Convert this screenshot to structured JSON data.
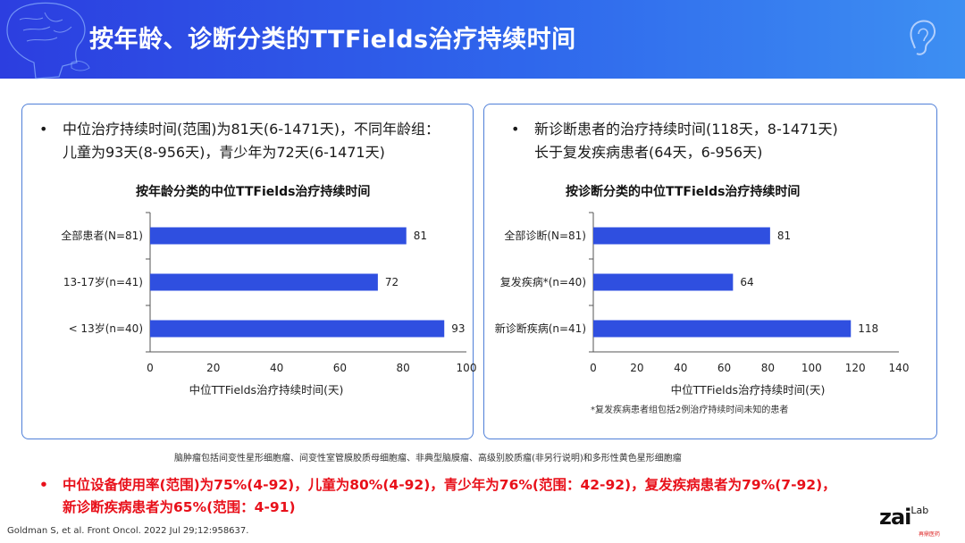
{
  "header": {
    "title": "按年龄、诊断分类的TTFields治疗持续时间",
    "bg_colors": [
      "#2c3ee0",
      "#3d8ff2"
    ]
  },
  "left_panel": {
    "bullet_line1": "中位治疗持续时间(范围)为81天(6-1471天)，不同年龄组：",
    "bullet_line2": "儿童为93天(8-956天)，青少年为72天(6-1471天)",
    "chart_title": "按年龄分类的中位TTFields治疗持续时间"
  },
  "right_panel": {
    "bullet_line1": "新诊断患者的治疗持续时间(118天，8-1471天)",
    "bullet_line2": "长于复发疾病患者(64天，6-956天)",
    "chart_title": "按诊断分类的中位TTFields治疗持续时间",
    "footnote": "*复发疾病患者组包括2例治疗持续时间未知的患者"
  },
  "chart_data": [
    {
      "type": "bar",
      "orientation": "horizontal",
      "title": "按年龄分类的中位TTFields治疗持续时间",
      "categories": [
        "全部患者(N=81)",
        "13-17岁(n=41)",
        "< 13岁(n=40)"
      ],
      "values": [
        81,
        72,
        93
      ],
      "xlabel": "中位TTFields治疗持续时间(天)",
      "xlim": [
        0,
        100
      ],
      "xticks": [
        0,
        20,
        40,
        60,
        80,
        100
      ],
      "bar_color": "#2f4fe0",
      "grid": false
    },
    {
      "type": "bar",
      "orientation": "horizontal",
      "title": "按诊断分类的中位TTFields治疗持续时间",
      "categories": [
        "全部诊断(N=81)",
        "复发疾病*(n=40)",
        "新诊断疾病(n=41)"
      ],
      "values": [
        81,
        64,
        118
      ],
      "xlabel": "中位TTFields治疗持续时间(天)",
      "xlim": [
        0,
        140
      ],
      "xticks": [
        0,
        20,
        40,
        60,
        80,
        100,
        120,
        140
      ],
      "bar_color": "#2f4fe0",
      "grid": false
    }
  ],
  "histology_note": "脑肿瘤包括间变性星形细胞瘤、间变性室管膜胶质母细胞瘤、非典型脑膜瘤、高级别胶质瘤(非另行说明)和多形性黄色星形细胞瘤",
  "summary": {
    "line1": "中位设备使用率(范围)为75%(4-92)，儿童为80%(4-92)，青少年为76%(范围：42-92)，复发疾病患者为79%(7-92)，",
    "line2": "新诊断疾病患者为65%(范围：4-91)",
    "color": "#e8101a"
  },
  "reference": "Goldman S, et al. Front Oncol. 2022 Jul 29;12:958637.",
  "logo": {
    "main": "zai",
    "sup": "Lab",
    "cn": "再鼎医药"
  }
}
